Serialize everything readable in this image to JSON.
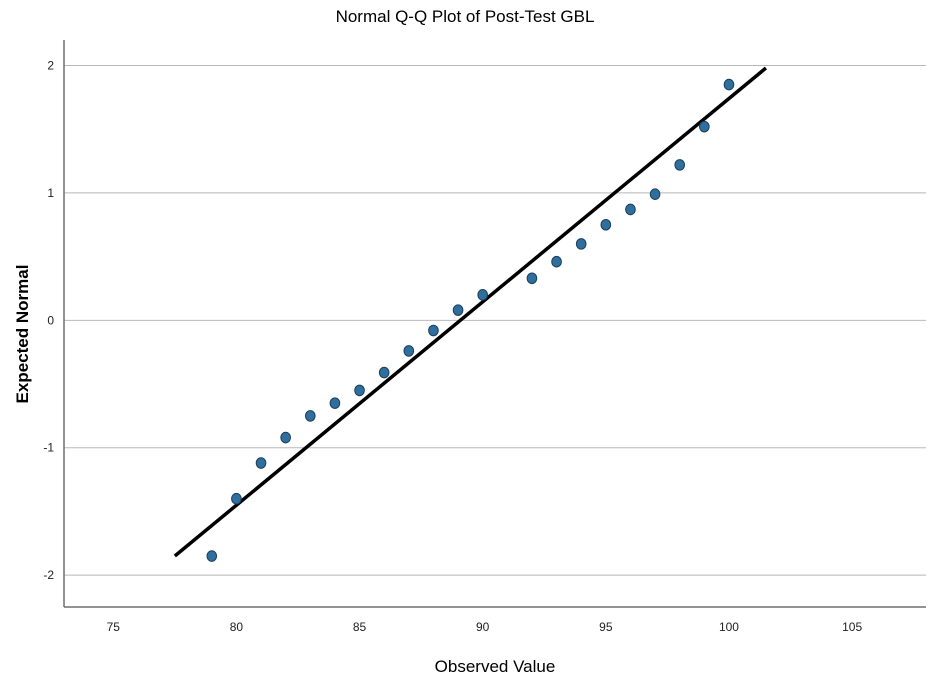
{
  "chart_data": {
    "type": "scatter",
    "title": "Normal Q-Q Plot of Post-Test GBL",
    "xlabel": "Observed Value",
    "ylabel": "Expected Normal",
    "xlim": [
      73,
      108
    ],
    "ylim": [
      -2.25,
      2.2
    ],
    "xticks": [
      75,
      80,
      85,
      90,
      95,
      100,
      105
    ],
    "yticks": [
      -2,
      -1,
      0,
      1,
      2
    ],
    "grid": true,
    "points": [
      {
        "x": 79,
        "y": -1.85
      },
      {
        "x": 80,
        "y": -1.4
      },
      {
        "x": 81,
        "y": -1.12
      },
      {
        "x": 82,
        "y": -0.92
      },
      {
        "x": 83,
        "y": -0.75
      },
      {
        "x": 84,
        "y": -0.65
      },
      {
        "x": 85,
        "y": -0.55
      },
      {
        "x": 86,
        "y": -0.41
      },
      {
        "x": 87,
        "y": -0.24
      },
      {
        "x": 88,
        "y": -0.08
      },
      {
        "x": 89,
        "y": 0.08
      },
      {
        "x": 90,
        "y": 0.2
      },
      {
        "x": 92,
        "y": 0.33
      },
      {
        "x": 93,
        "y": 0.46
      },
      {
        "x": 94,
        "y": 0.6
      },
      {
        "x": 95,
        "y": 0.75
      },
      {
        "x": 96,
        "y": 0.87
      },
      {
        "x": 97,
        "y": 0.99
      },
      {
        "x": 98,
        "y": 1.22
      },
      {
        "x": 99,
        "y": 1.52
      },
      {
        "x": 100,
        "y": 1.85
      }
    ],
    "reference_line": {
      "x_start": 77.5,
      "y_start": -1.85,
      "x_end": 101.5,
      "y_end": 1.98
    },
    "colors": {
      "point": "#2f6f9d",
      "line": "#000000",
      "grid": "#b8b8b8"
    }
  }
}
